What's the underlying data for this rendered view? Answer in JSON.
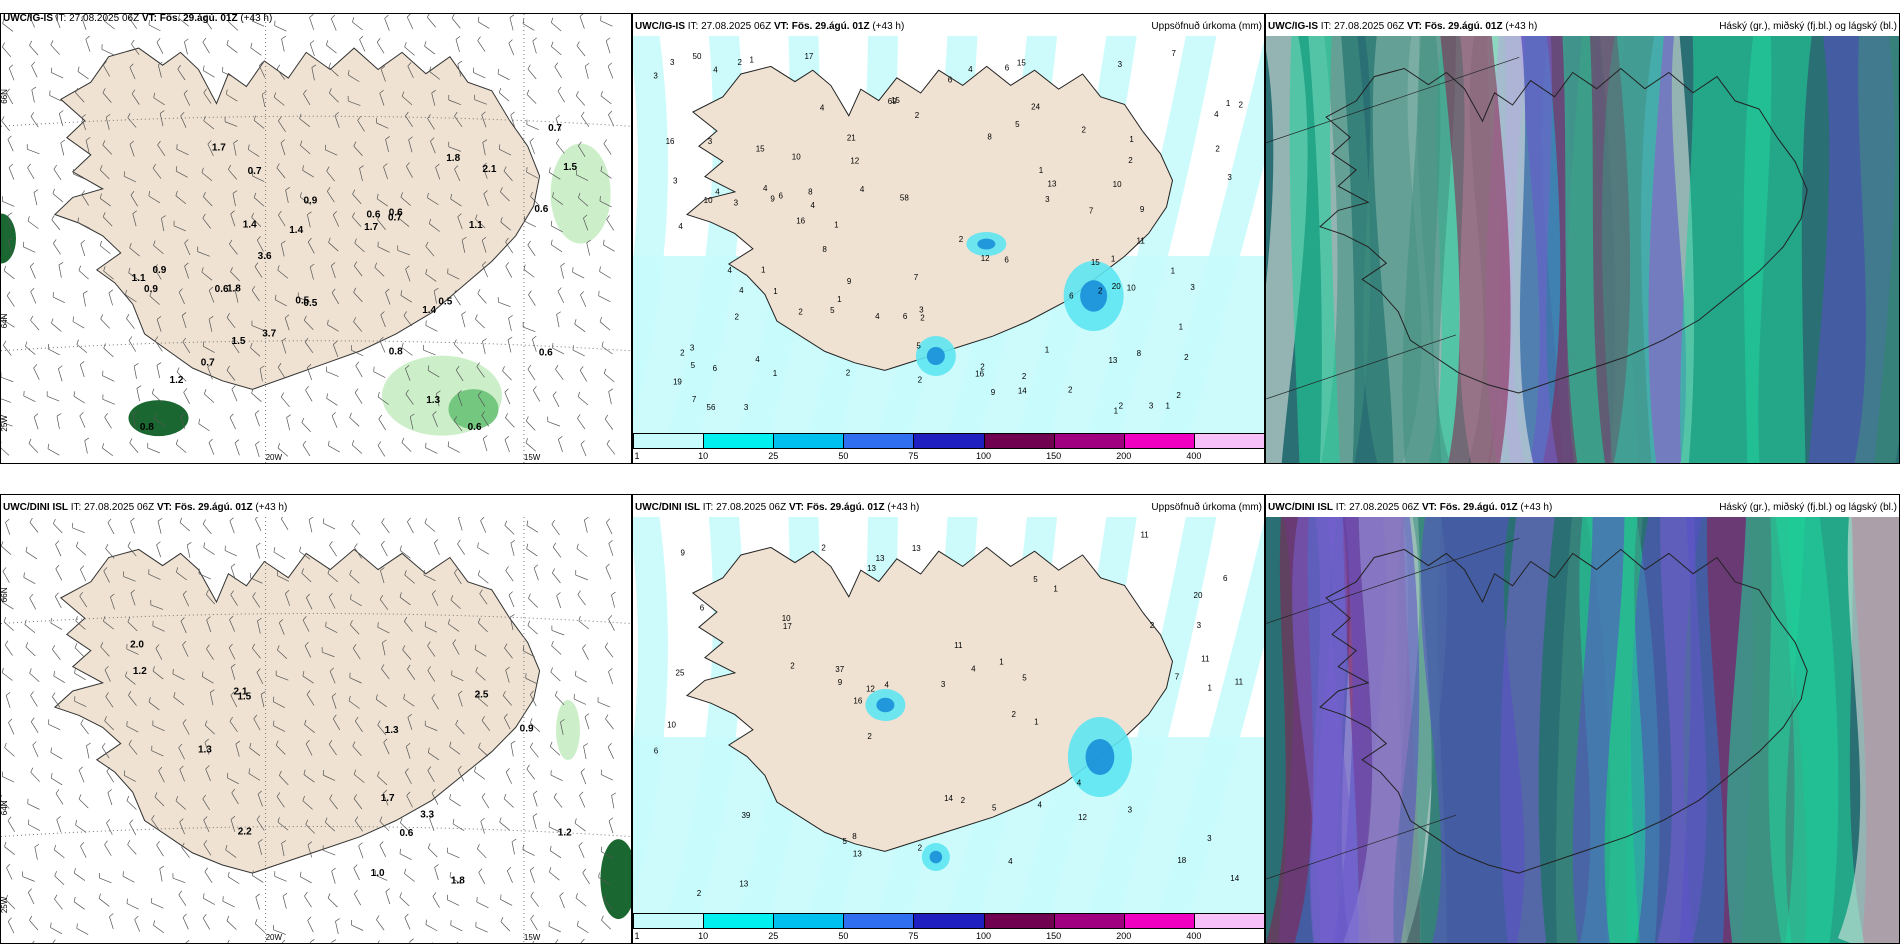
{
  "top_row": {
    "wind_panel": {
      "title_model": "UWC/IG-IS",
      "title_it": "IT: 27.08.2025 06Z",
      "title_vt": "VT: Fös. 29.ágú. 01Z",
      "title_lead": "(+43 h)",
      "lat_labels": [
        "66N",
        "64N",
        "25W"
      ],
      "lon_labels": [
        "20W",
        "15W"
      ],
      "values": [
        "2.1",
        "1.4",
        "1.4",
        "1.7",
        "1.2",
        "0.6",
        "0.8",
        "0.6",
        "3.6",
        "3.7",
        "1.7",
        "1.4",
        "1.1",
        "1.8",
        "1.1",
        "0.9",
        "0.8",
        "0.7",
        "1.8",
        "0.6",
        "0.6",
        "0.5",
        "0.7",
        "0.6",
        "0.9",
        "0.5",
        "0.7",
        "0.9",
        "0.7",
        "0.6",
        "0.5",
        "1.5",
        "1.5",
        "1.3"
      ]
    },
    "precip_panel": {
      "title_model": "UWC/IG-IS",
      "title_it": "IT: 27.08.2025 06Z",
      "title_vt": "VT: Fös. 29.ágú. 01Z",
      "title_lead": "(+43 h)",
      "right_label": "Uppsöfnuð úrkoma (mm)",
      "values": [
        "7",
        "9",
        "2",
        "1",
        "1",
        "4",
        "6",
        "8",
        "5",
        "7",
        "9",
        "4",
        "3",
        "2",
        "1",
        "1",
        "2",
        "3",
        "4",
        "4",
        "3",
        "6",
        "2",
        "2",
        "8",
        "3",
        "16",
        "3",
        "1",
        "2",
        "1",
        "4",
        "6",
        "1",
        "2",
        "3",
        "4",
        "1",
        "1",
        "2",
        "4",
        "2",
        "1",
        "2",
        "2",
        "5",
        "3",
        "10",
        "17",
        "24",
        "9",
        "10",
        "6",
        "3",
        "2",
        "1",
        "1",
        "4",
        "2",
        "4",
        "6",
        "15",
        "16",
        "15",
        "13",
        "10",
        "7",
        "8",
        "6",
        "9",
        "4",
        "4",
        "5",
        "2",
        "2",
        "2",
        "3",
        "3",
        "2",
        "1",
        "4",
        "7",
        "2",
        "5",
        "4",
        "3",
        "6",
        "12",
        "12",
        "8",
        "15",
        "14",
        "16",
        "13",
        "21",
        "20",
        "19",
        "11",
        "15",
        "50",
        "69",
        "10",
        "56",
        "58",
        "1",
        "2",
        "1",
        "3",
        "2",
        "3"
      ]
    },
    "cloud_panel": {
      "title_model": "UWC/IG-IS",
      "title_it": "IT: 27.08.2025 06Z",
      "title_vt": "VT: Fös. 29.ágú. 01Z",
      "title_lead": "(+43 h)",
      "right_label": "Háský (gr.), miðský (fj.bl.) og lágský (bl.)"
    }
  },
  "bottom_row": {
    "wind_panel": {
      "title_model": "UWC/DINI ISL",
      "title_it": "IT: 27.08.2025 06Z",
      "title_vt": "VT: Fös. 29.ágú. 01Z",
      "title_lead": "(+43 h)",
      "lat_labels": [
        "66N",
        "64N",
        "25W"
      ],
      "lon_labels": [
        "20W",
        "15W"
      ],
      "values": [
        "2.1",
        "2.0",
        "1.8",
        "1.3",
        "1.2",
        "1.0",
        "2.2",
        "2.5",
        "1.5",
        "1.7",
        "3.3",
        "1.3",
        "0.9",
        "1.2",
        "0.6"
      ]
    },
    "precip_panel": {
      "title_model": "UWC/DINI ISL",
      "title_it": "IT: 27.08.2025 06Z",
      "title_vt": "VT: Fös. 29.ágú. 01Z",
      "title_lead": "(+43 h)",
      "right_label": "Uppsöfnuð úrkoma (mm)",
      "values": [
        "2",
        "3",
        "2",
        "2",
        "4",
        "5",
        "2",
        "3",
        "4",
        "2",
        "1",
        "1",
        "9",
        "8",
        "5",
        "5",
        "6",
        "4",
        "7",
        "39",
        "14",
        "37",
        "18",
        "13",
        "6",
        "4",
        "11",
        "13",
        "5",
        "14",
        "17",
        "13",
        "10",
        "11",
        "10",
        "20",
        "16",
        "25",
        "13",
        "9",
        "12",
        "11",
        "11",
        "13",
        "3",
        "2",
        "2",
        "1",
        "3",
        "6",
        "4",
        "12",
        "1",
        "2"
      ]
    },
    "cloud_panel": {
      "title_model": "UWC/DINI ISL",
      "title_it": "IT: 27.08.2025 06Z",
      "title_vt": "VT: Fös. 29.ágú. 01Z",
      "title_lead": "(+43 h)",
      "right_label": "Háský (gr.), miðský (fj.bl.) og lágský (bl.)"
    }
  },
  "precip_legend": {
    "labels": [
      "1",
      "10",
      "25",
      "50",
      "75",
      "100",
      "150",
      "200",
      "400"
    ],
    "colors": [
      "#c8fbfc",
      "#00f0f0",
      "#00c0f0",
      "#3070f0",
      "#2020c0",
      "#700050",
      "#a00080",
      "#f000c0",
      "#f8c0f8"
    ]
  },
  "colors": {
    "land": "#efe2d2",
    "precip_light": "#c8fbfc",
    "precip_mid": "#5de6f2",
    "precip_dark": "#1a8fd8",
    "wind_green_light": "#c9eec6",
    "wind_green_mid": "#6fc47b",
    "wind_green_dark": "#0f5f26",
    "cloud_teal": "#2a6f73",
    "cloud_blue": "#5a4fc8",
    "cloud_maroon": "#8b1e4f",
    "cloud_green": "#1fd39a"
  }
}
